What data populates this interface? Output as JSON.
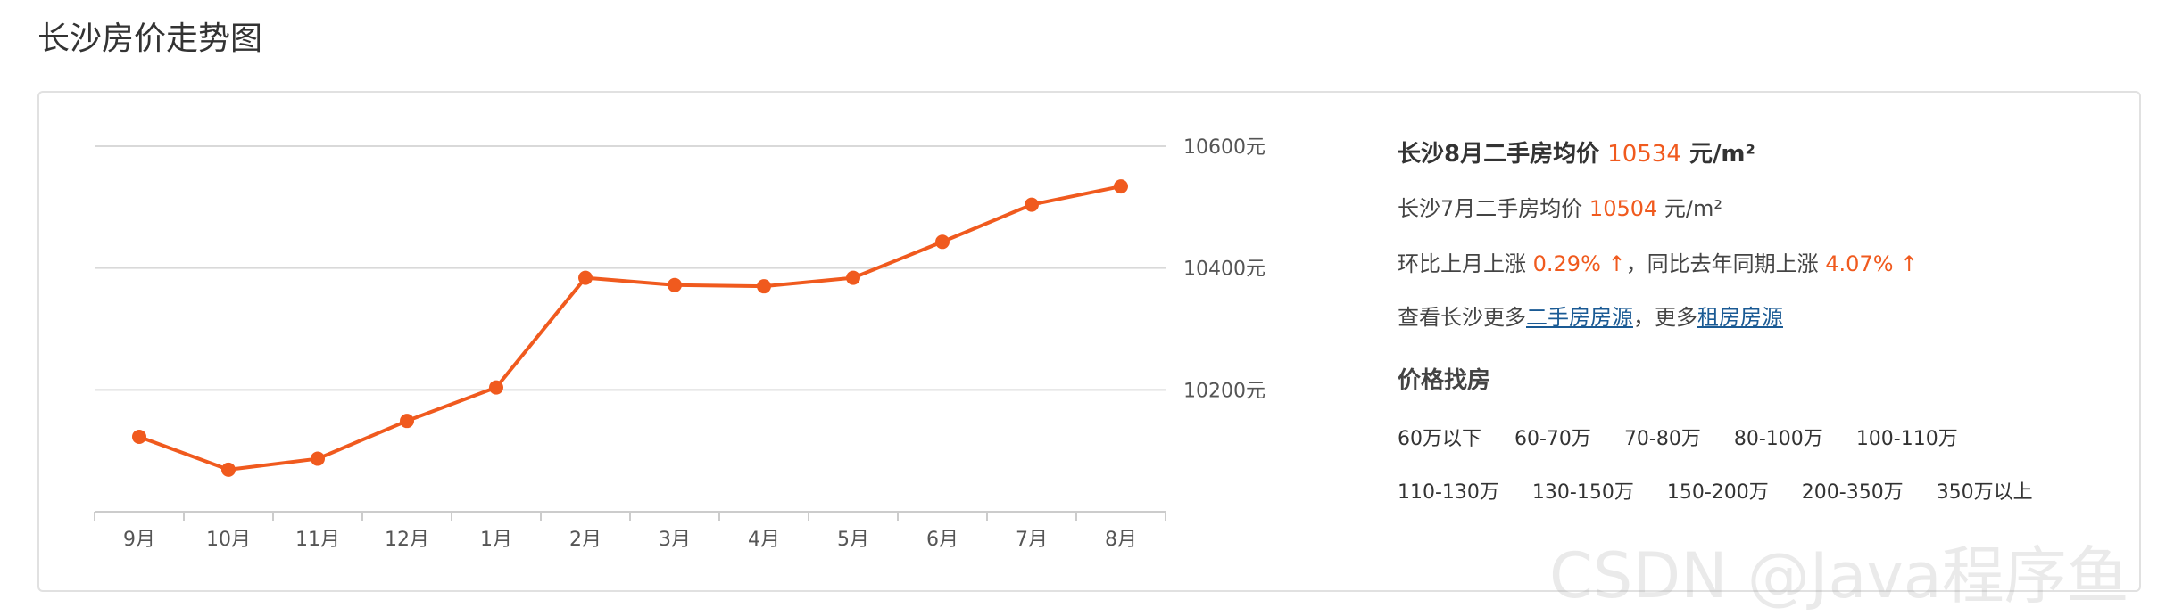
{
  "page": {
    "title": "长沙房价走势图"
  },
  "colors": {
    "accent": "#f05a1e",
    "link": "#1a5a94",
    "grid": "#d9d9d9",
    "axis": "#cccccc"
  },
  "info": {
    "headline": {
      "prefix": "长沙8月二手房均价",
      "value": "10534",
      "unit": "元/m²"
    },
    "prev_month": {
      "prefix": "长沙7月二手房均价",
      "value": "10504",
      "unit": "元/m²"
    },
    "change": {
      "mom_prefix": "环比上月上涨",
      "mom_value": "0.29% ↑",
      "separator": "，",
      "yoy_prefix": "同比去年同期上涨",
      "yoy_value": "4.07% ↑"
    },
    "more": {
      "prefix": "查看长沙更多",
      "link1": "二手房房源",
      "middle": "，更多",
      "link2": "租房房源"
    }
  },
  "price_search": {
    "title": "价格找房",
    "row1": [
      "60万以下",
      "60-70万",
      "70-80万",
      "80-100万",
      "100-110万"
    ],
    "row2": [
      "110-130万",
      "130-150万",
      "150-200万",
      "200-350万",
      "350万以上"
    ]
  },
  "watermark": "CSDN @Java程序鱼",
  "chart_data": {
    "type": "line",
    "categories": [
      "9月",
      "10月",
      "11月",
      "12月",
      "1月",
      "2月",
      "3月",
      "4月",
      "5月",
      "6月",
      "7月",
      "8月"
    ],
    "series": [
      {
        "values": [
          10123,
          10069,
          10087,
          10149,
          10204,
          10384,
          10372,
          10370,
          10384,
          10443,
          10504,
          10534
        ]
      }
    ],
    "y_ticks": [
      10200,
      10400,
      10600
    ],
    "y_tick_labels": [
      "10200元",
      "10400元",
      "10600元"
    ],
    "ylim": [
      10000,
      10600
    ],
    "y_axis_position": "right",
    "grid": true,
    "legend": "none"
  }
}
